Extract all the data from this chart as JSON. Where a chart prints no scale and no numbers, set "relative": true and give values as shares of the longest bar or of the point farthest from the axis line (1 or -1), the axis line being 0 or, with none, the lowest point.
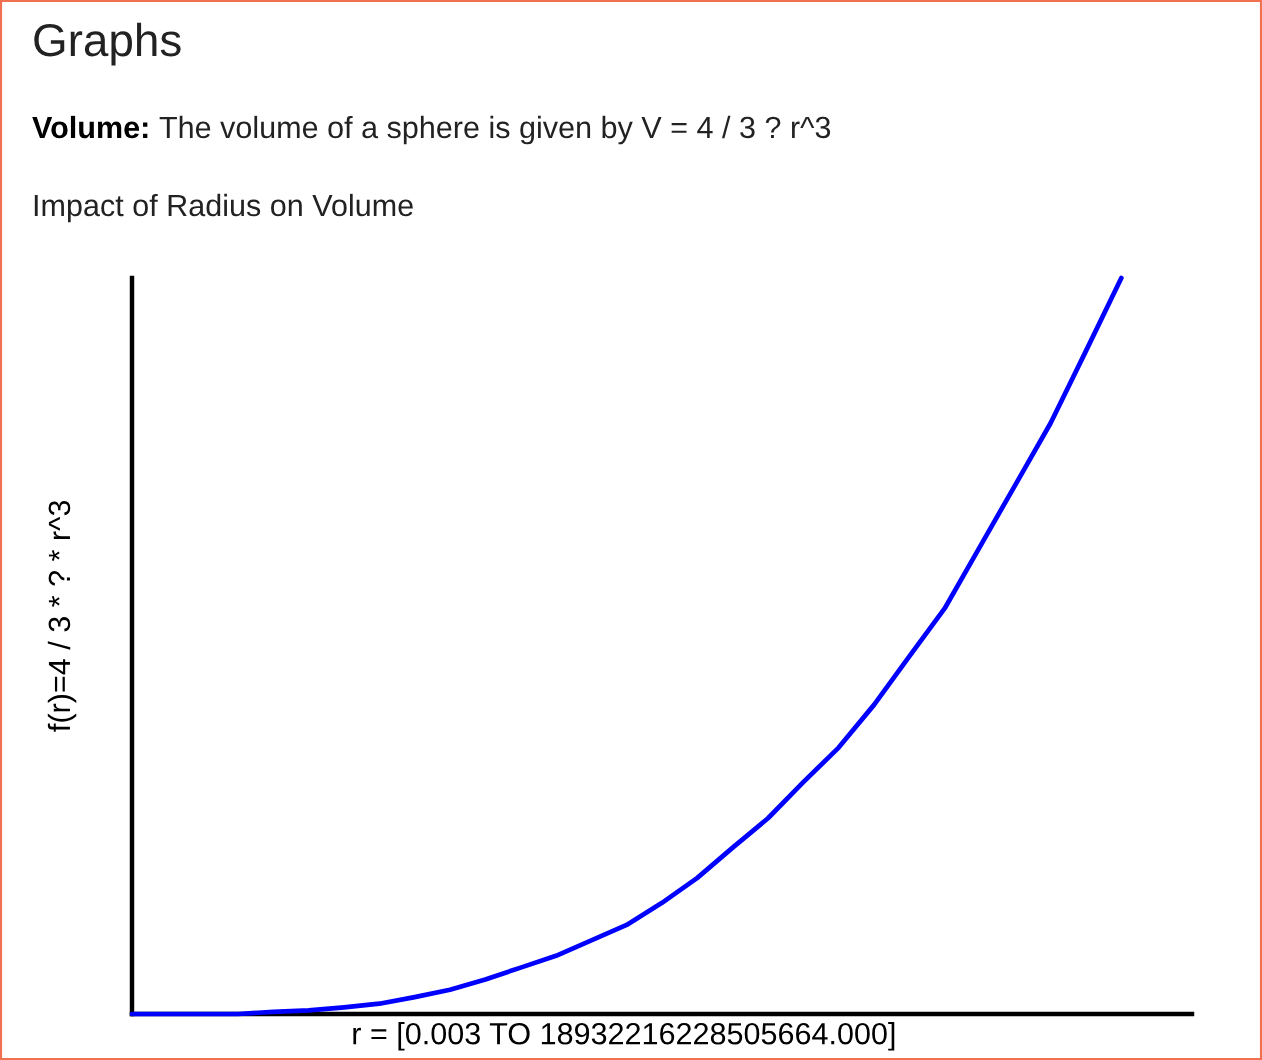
{
  "chart_data": {
    "type": "line",
    "title": "Graphs",
    "subtitle": "Volume: The volume of a sphere is given by V = 4 / 3 ? r^3",
    "annotations": [
      "Impact of Radius on Volume"
    ],
    "xlabel": "r = [0.003 TO 18932216228505664.000]",
    "ylabel": "f(r)=4 / 3 * ? * r^3",
    "relative": true,
    "tick_labels": false,
    "line_style": "solid",
    "color": "#0000ff",
    "categories": [
      null,
      null,
      null,
      null,
      null,
      null,
      null,
      null,
      null,
      null,
      null,
      null,
      null,
      null,
      null,
      null,
      null,
      null,
      null,
      null,
      null,
      null,
      null,
      null,
      null,
      null,
      null,
      null,
      null,
      null,
      null
    ],
    "values": [
      0,
      0,
      0,
      0,
      0.003,
      0.005,
      0.009,
      0.014,
      0.023,
      0.033,
      0.047,
      0.063,
      0.079,
      0.1,
      0.121,
      0.151,
      0.185,
      0.226,
      0.266,
      0.315,
      0.362,
      0.42,
      0.486,
      0.551,
      0.635,
      0.719,
      0.803,
      0.901,
      1,
      null,
      null
    ]
  }
}
